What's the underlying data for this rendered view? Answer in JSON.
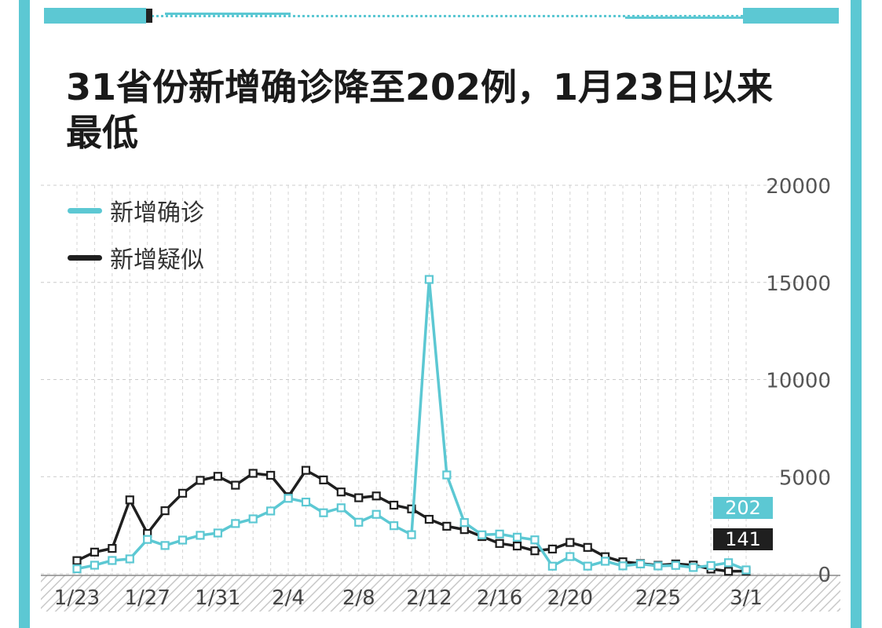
{
  "title": "31省份新增确诊降至202例，1月23日以来最低",
  "colors": {
    "frame": "#5cc8d3",
    "confirmed": "#5cc8d3",
    "suspected": "#1f1f1f",
    "text": "#1a1a1a"
  },
  "callouts": {
    "confirmed_last": "202",
    "suspected_last": "141"
  },
  "chart_data": {
    "type": "line",
    "x": [
      "1/23",
      "1/24",
      "1/25",
      "1/26",
      "1/27",
      "1/28",
      "1/29",
      "1/30",
      "1/31",
      "2/1",
      "2/2",
      "2/3",
      "2/4",
      "2/5",
      "2/6",
      "2/7",
      "2/8",
      "2/9",
      "2/10",
      "2/11",
      "2/12",
      "2/13",
      "2/14",
      "2/15",
      "2/16",
      "2/17",
      "2/18",
      "2/19",
      "2/20",
      "2/21",
      "2/22",
      "2/23",
      "2/24",
      "2/25",
      "2/26",
      "2/27",
      "2/28",
      "2/29",
      "3/1"
    ],
    "x_tick_labels": [
      "1/23",
      "1/27",
      "1/31",
      "2/4",
      "2/8",
      "2/12",
      "2/16",
      "2/20",
      "2/25",
      "3/1"
    ],
    "series": [
      {
        "name": "新增确诊",
        "color": "#5cc8d3",
        "values": [
          259,
          444,
          688,
          769,
          1771,
          1459,
          1737,
          1982,
          2102,
          2590,
          2829,
          3235,
          3887,
          3694,
          3143,
          3399,
          2656,
          3062,
          2478,
          2015,
          15152,
          5090,
          2641,
          2009,
          2048,
          1886,
          1749,
          394,
          889,
          397,
          648,
          409,
          508,
          406,
          433,
          327,
          427,
          573,
          202
        ]
      },
      {
        "name": "新增疑似",
        "color": "#1f1f1f",
        "values": [
          680,
          1118,
          1309,
          3806,
          2077,
          3248,
          4148,
          4812,
          5019,
          4562,
          5173,
          5072,
          3971,
          5328,
          4833,
          4214,
          3916,
          4008,
          3536,
          3342,
          2807,
          2450,
          2277,
          1918,
          1563,
          1432,
          1185,
          1277,
          1614,
          1361,
          882,
          620,
          530,
          439,
          508,
          452,
          248,
          132,
          141
        ]
      }
    ],
    "y_ticks": [
      "0",
      "5000",
      "10000",
      "15000",
      "20000"
    ],
    "ylim": [
      0,
      20000
    ],
    "ylabel_side": "right",
    "legend": "top-left",
    "grid": true
  }
}
